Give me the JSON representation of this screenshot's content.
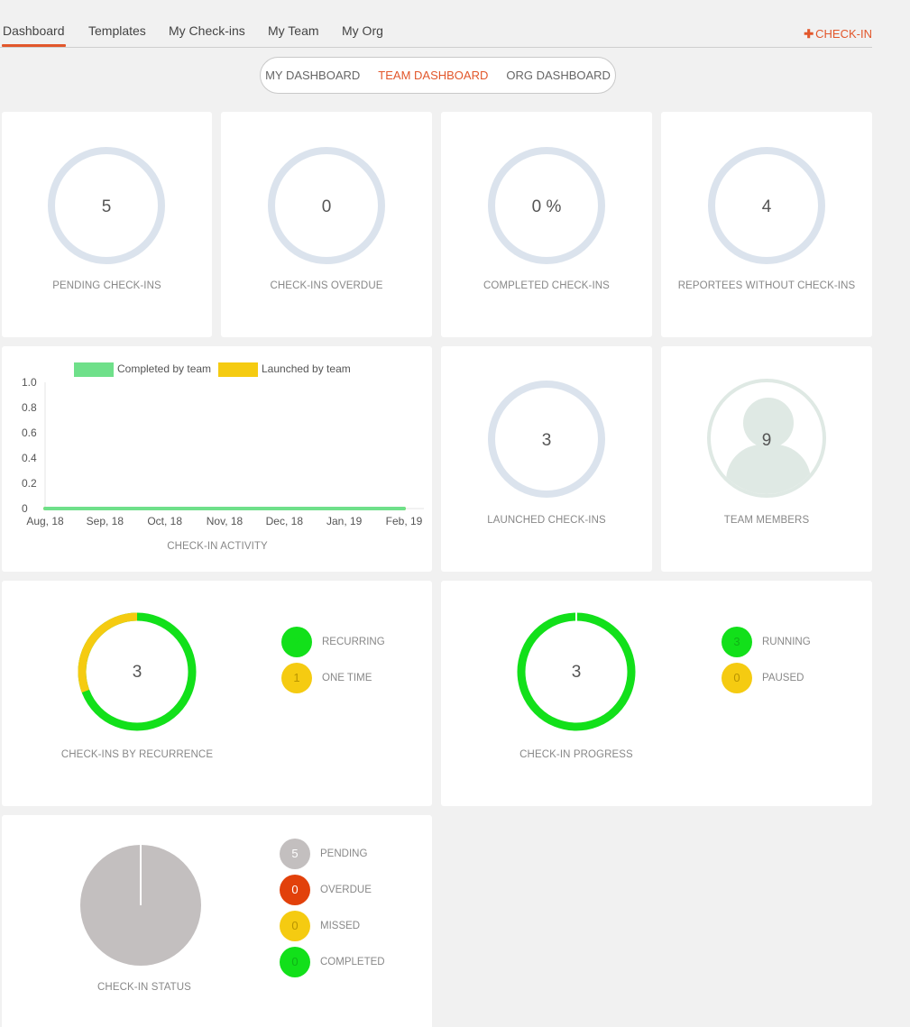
{
  "nav": {
    "tabs": [
      {
        "label": "Dashboard",
        "active": true
      },
      {
        "label": "Templates"
      },
      {
        "label": "My Check-ins"
      },
      {
        "label": "My Team"
      },
      {
        "label": "My Org"
      }
    ],
    "checkin_plus": "✚",
    "checkin_label": "CHECK-IN"
  },
  "switcher": {
    "options": [
      "MY DASHBOARD",
      "TEAM DASHBOARD",
      "ORG DASHBOARD"
    ],
    "active_index": 1
  },
  "colors": {
    "accent": "#e2572b",
    "ring": "#dbe3ed",
    "green": "#12e01a",
    "yellow": "#f5cb11",
    "red": "#e2410b",
    "grey": "#c3bfbf",
    "completed_series": "#6fe08a",
    "launched_series": "#f5cb11"
  },
  "stats": {
    "pending": {
      "value": "5",
      "label": "PENDING CHECK-INS"
    },
    "overdue": {
      "value": "0",
      "label": "CHECK-INS OVERDUE"
    },
    "completed": {
      "value": "0 %",
      "label": "COMPLETED CHECK-INS"
    },
    "reportees": {
      "value": "4",
      "label": "REPORTEES WITHOUT CHECK-INS"
    },
    "launched": {
      "value": "3",
      "label": "LAUNCHED CHECK-INS"
    },
    "team_members": {
      "value": "9",
      "label": "TEAM MEMBERS",
      "icon": "person-icon"
    }
  },
  "chart_data": {
    "type": "line",
    "title": "CHECK-IN ACTIVITY",
    "categories": [
      "Aug, 18",
      "Sep, 18",
      "Oct, 18",
      "Nov, 18",
      "Dec, 18",
      "Jan, 19",
      "Feb, 19"
    ],
    "series": [
      {
        "name": "Completed by team",
        "color": "#6fe08a",
        "values": [
          0,
          0,
          0,
          0,
          0,
          0,
          0
        ]
      },
      {
        "name": "Launched by team",
        "color": "#f5cb11",
        "values": [
          0,
          0,
          0,
          0,
          0,
          0,
          0
        ]
      }
    ],
    "ylim": [
      0,
      1.0
    ],
    "yticks": [
      "1.0",
      "0.8",
      "0.6",
      "0.4",
      "0.2",
      "0"
    ],
    "legend": "top"
  },
  "recurrence": {
    "total": "3",
    "caption": "CHECK-INS BY RECURRENCE",
    "items": [
      {
        "label": "RECURRING",
        "value": "2",
        "color": "#12e01a"
      },
      {
        "label": "ONE TIME",
        "value": "1",
        "color": "#f5cb11"
      }
    ]
  },
  "progress": {
    "total": "3",
    "caption": "CHECK-IN PROGRESS",
    "items": [
      {
        "label": "RUNNING",
        "value": "3",
        "color": "#12e01a"
      },
      {
        "label": "PAUSED",
        "value": "0",
        "color": "#f5cb11"
      }
    ]
  },
  "status": {
    "caption": "CHECK-IN STATUS",
    "items": [
      {
        "label": "PENDING",
        "value": "5",
        "color": "#c3bfbf"
      },
      {
        "label": "OVERDUE",
        "value": "0",
        "color": "#e2410b"
      },
      {
        "label": "MISSED",
        "value": "0",
        "color": "#f5cb11"
      },
      {
        "label": "COMPLETED",
        "value": "0",
        "color": "#12e01a"
      }
    ]
  }
}
